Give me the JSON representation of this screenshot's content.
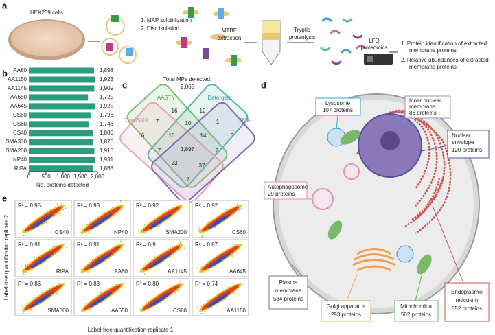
{
  "panel_a": {
    "letter": "a",
    "cells": "HEK239 cells",
    "step1": [
      "1. MAP solubilization",
      "2. Disc isolation"
    ],
    "step2": [
      "MTBE",
      "extraction"
    ],
    "step3": [
      "Tryptic",
      "proteolysis"
    ],
    "step4": [
      "LFQ",
      "proteomics"
    ],
    "outcomes": [
      "1. Protein identification of extracted",
      "membrane proteins",
      "2. Relative abundances of extracted",
      "membrane proteins"
    ]
  },
  "chart_data": {
    "type": "bar",
    "letter": "b",
    "orientation": "horizontal",
    "categories": [
      "AA80",
      "AA1150",
      "AA1145",
      "AA650",
      "AA645",
      "CS80",
      "CS60",
      "CS40",
      "SMA300",
      "SMA200",
      "NP40",
      "RIPA"
    ],
    "values": [
      1898,
      1923,
      1909,
      1725,
      1925,
      1798,
      1746,
      1880,
      1870,
      1910,
      1931,
      1868
    ],
    "value_labels": [
      "1,898",
      "1,923",
      "1,909",
      "1,725",
      "1,925",
      "1,798",
      "1,746",
      "1,880",
      "1,870",
      "1,910",
      "1,931",
      "1,868"
    ],
    "color": "#2a9d7f",
    "xlabel": "No. proteins detected",
    "xlim": [
      0,
      2000
    ],
    "xticks": [
      0,
      500,
      {
        "value": 1000,
        "label": "1,000"
      },
      {
        "value": 1500,
        "label": "1,500"
      },
      {
        "value": 2000,
        "label": "2,000"
      }
    ]
  },
  "panel_c": {
    "letter": "c",
    "title": [
      "Total MPs detected:",
      "2,065"
    ],
    "sets": [
      "AASTY",
      "Detergent",
      "CloroSMA",
      "SMA"
    ],
    "counts": [
      "16",
      "12",
      "7",
      "10",
      "1",
      "6",
      "16",
      "14",
      "3",
      "7",
      "1,897",
      "7",
      "23",
      "37",
      "7"
    ]
  },
  "panel_d": {
    "letter": "d",
    "lysosome": [
      "Lysosome",
      "107 proteins"
    ],
    "inner": [
      "Inner nuclear",
      "membrane",
      "86 proteins"
    ],
    "envelope": [
      "Nuclear",
      "envelope",
      "120 proteins"
    ],
    "autophagosome": [
      "Autophagosome",
      "29 proteins"
    ],
    "plasma": [
      "Plasma",
      "membrane",
      "584 proteins"
    ],
    "golgi": [
      "Golgi apparatus",
      "293 proteins"
    ],
    "mito": [
      "Mitochondria",
      "502 proteins"
    ],
    "er": [
      "Endoplasmic",
      "reticulum",
      "552 proteins"
    ]
  },
  "panel_e": {
    "letter": "e",
    "ylabel": "Label-free quantification replicate 2",
    "xlabel": "Label-free quantification replicate 1",
    "plots": [
      {
        "r2": "R² = 0.95",
        "name": "CS40"
      },
      {
        "r2": "R² = 0.93",
        "name": "NP40"
      },
      {
        "r2": "R² = 0.92",
        "name": "SMA200"
      },
      {
        "r2": "R² = 0.92",
        "name": "CS60"
      },
      {
        "r2": "R² = 0.91",
        "name": "RIPA"
      },
      {
        "r2": "R² = 0.91",
        "name": "AA80"
      },
      {
        "r2": "R² = 0.9",
        "name": "AA1145"
      },
      {
        "r2": "R² = 0.87",
        "name": "AA645"
      },
      {
        "r2": "R² = 0.86",
        "name": "SMA300"
      },
      {
        "r2": "R² = 0.83",
        "name": "AA650"
      },
      {
        "r2": "R² = 0.80",
        "name": "CS80"
      },
      {
        "r2": "R² = 0.74",
        "name": "AA1150"
      }
    ]
  }
}
